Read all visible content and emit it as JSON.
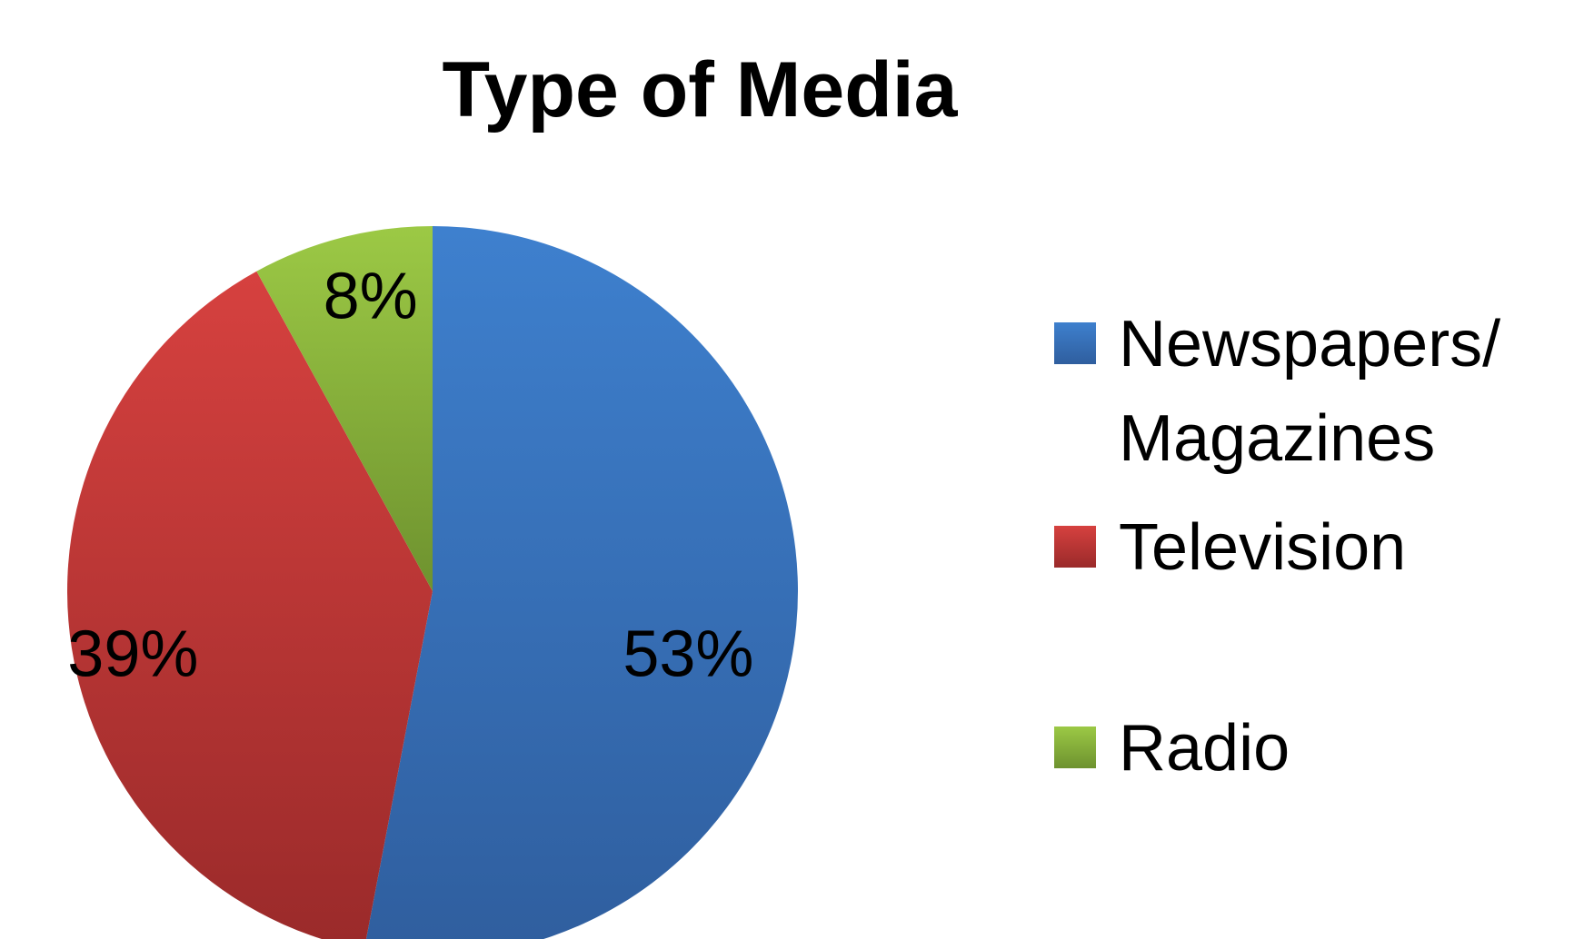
{
  "chart_data": {
    "type": "pie",
    "title": "Type of Media",
    "categories": [
      "Newspapers/ Magazines",
      "Television",
      "Radio"
    ],
    "values": [
      53,
      39,
      8
    ],
    "data_labels": [
      "53%",
      "39%",
      "8%"
    ],
    "colors": [
      "#3A75C0",
      "#C0393A",
      "#8DB33D"
    ],
    "legend": {
      "position": "right",
      "entries": [
        {
          "lines": [
            "Newspapers/",
            "Magazines"
          ]
        },
        {
          "lines": [
            "Television"
          ]
        },
        {
          "lines": [
            "Radio"
          ]
        }
      ]
    }
  }
}
